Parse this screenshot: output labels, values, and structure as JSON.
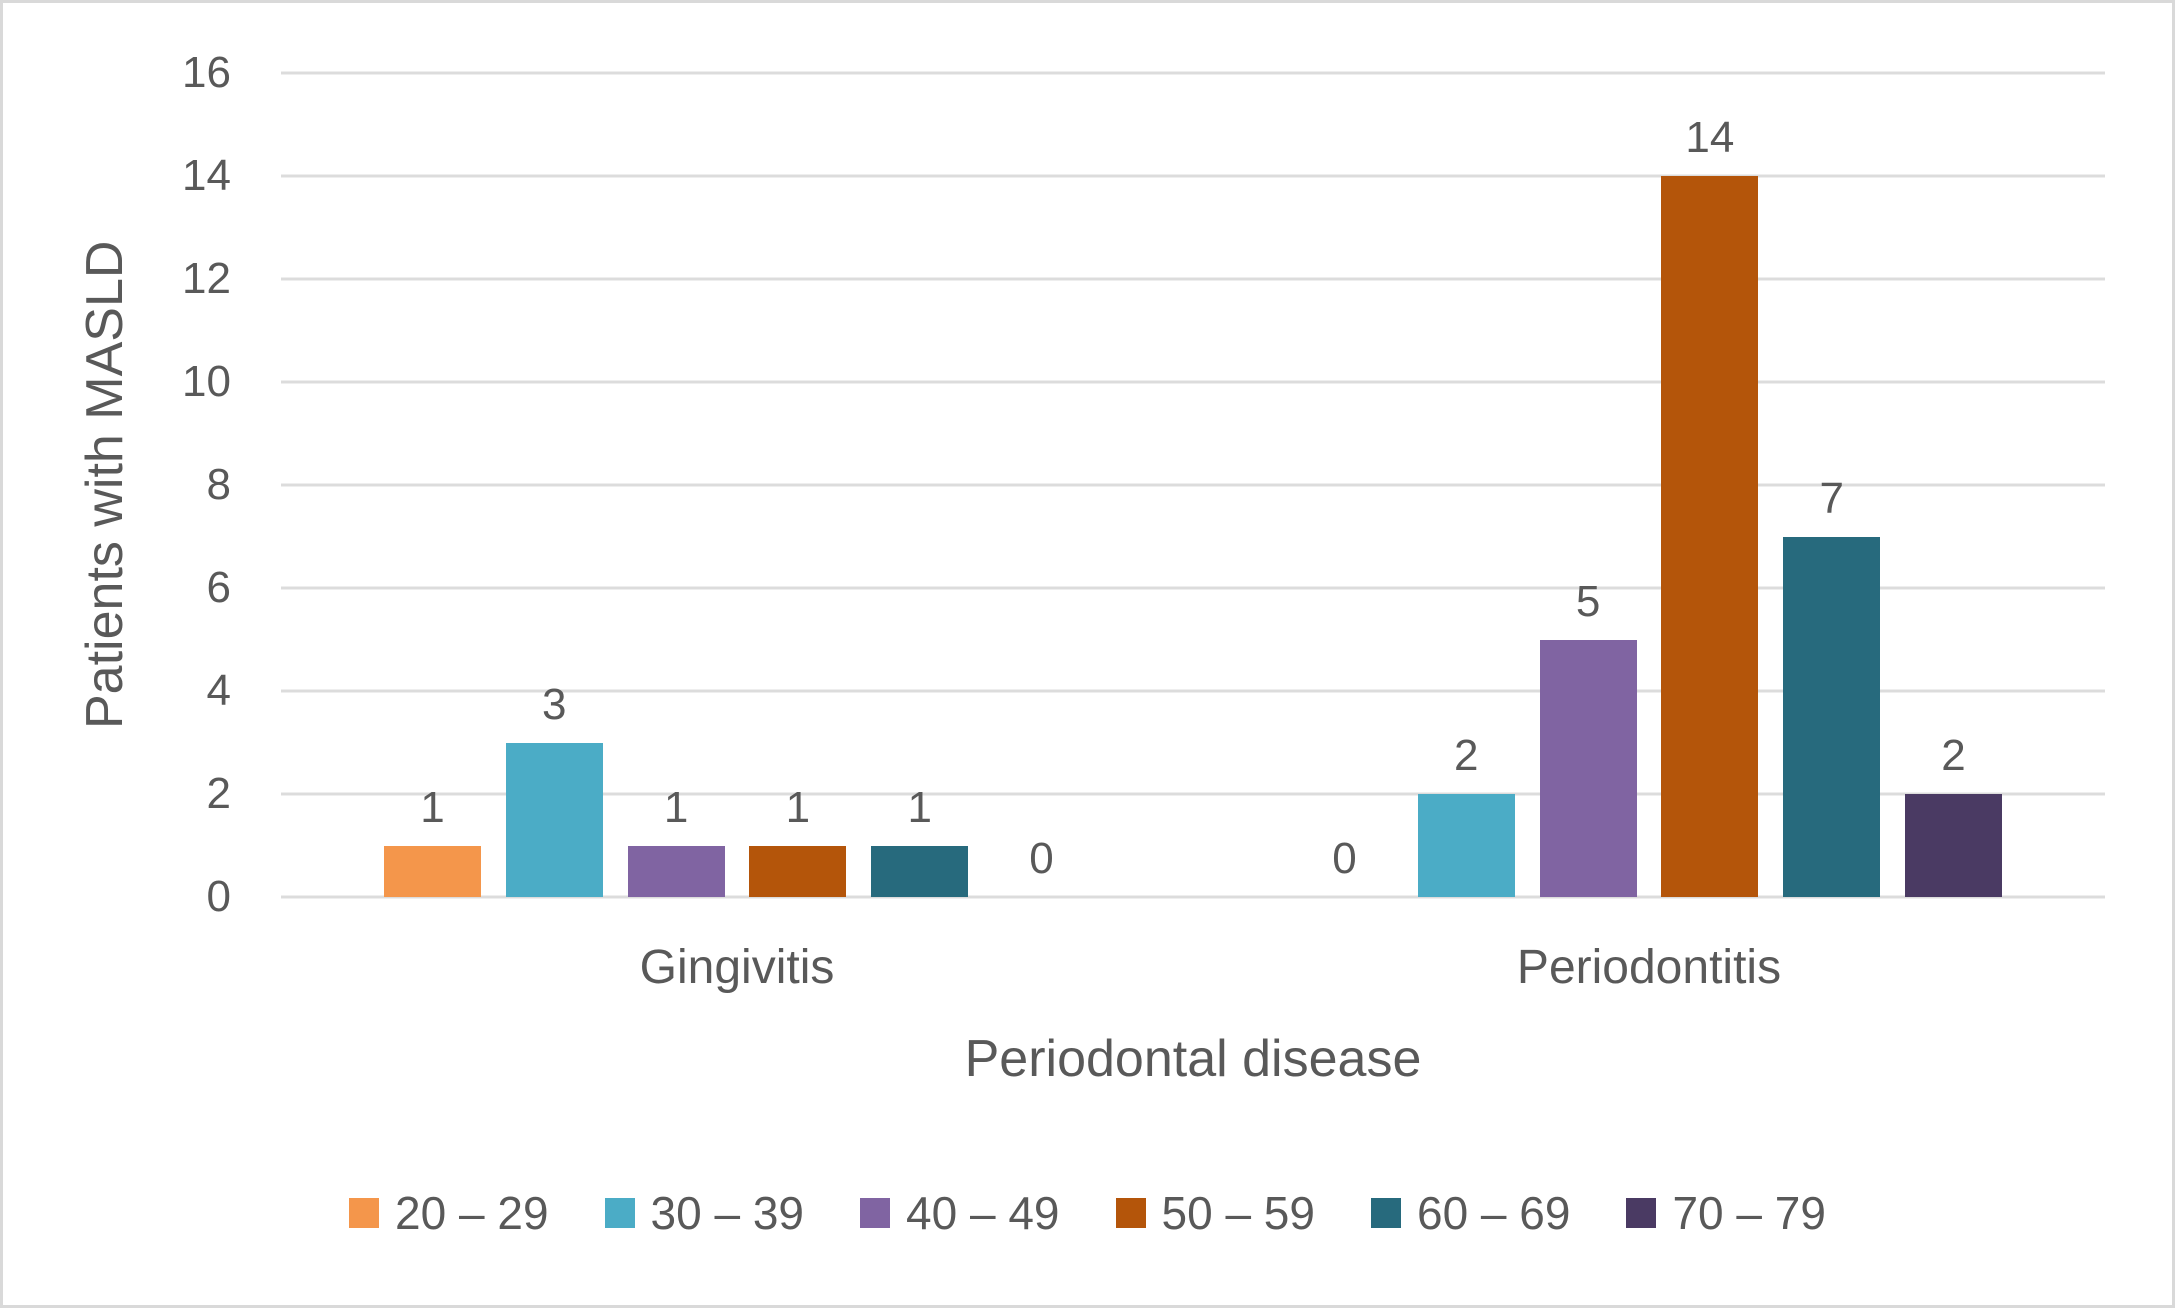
{
  "chart_data": {
    "type": "bar",
    "title": "",
    "xlabel": "Periodontal disease",
    "ylabel": "Patients with MASLD",
    "categories": [
      "Gingivitis",
      "Periodontitis"
    ],
    "series": [
      {
        "name": "20 – 29",
        "color": "#F4964B",
        "values": [
          1,
          0
        ]
      },
      {
        "name": "30 – 39",
        "color": "#4BACC6",
        "values": [
          3,
          2
        ]
      },
      {
        "name": "40 – 49",
        "color": "#8064A2",
        "values": [
          1,
          5
        ]
      },
      {
        "name": "50 – 59",
        "color": "#B4550A",
        "values": [
          1,
          14
        ]
      },
      {
        "name": "60 – 69",
        "color": "#276A7D",
        "values": [
          1,
          7
        ]
      },
      {
        "name": "70 – 79",
        "color": "#4A3A63",
        "values": [
          0,
          2
        ]
      }
    ],
    "ylim": [
      0,
      16
    ],
    "yticks": [
      0,
      2,
      4,
      6,
      8,
      10,
      12,
      14,
      16
    ],
    "grid": true,
    "data_labels": true,
    "legend_position": "bottom"
  },
  "colors": {
    "gridline": "#DCDCDC",
    "text": "#595959",
    "frame_border": "#D9D9D9",
    "background": "#FFFFFF"
  }
}
